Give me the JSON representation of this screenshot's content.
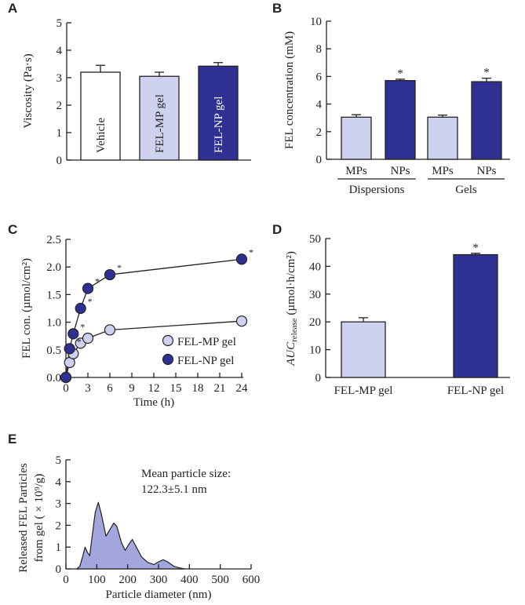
{
  "colors": {
    "light": "#cfd2ee",
    "dark": "#2e3192",
    "white": "#ffffff",
    "area": "#a3a6dd"
  },
  "chart_data": [
    {
      "panel": "A",
      "type": "bar",
      "ylabel": "Viscosity (Pa·s)",
      "ylim": [
        0,
        5
      ],
      "yticks": [
        0,
        1,
        2,
        3,
        4,
        5
      ],
      "categories": [
        "Vehicle",
        "FEL-MP gel",
        "FEL-NP gel"
      ],
      "values": [
        3.2,
        3.05,
        3.42
      ],
      "errors": [
        0.25,
        0.15,
        0.13
      ],
      "bar_colors": [
        "white",
        "light",
        "dark"
      ]
    },
    {
      "panel": "B",
      "type": "bar",
      "ylabel": "FEL concentration (mM)",
      "ylim": [
        0,
        10
      ],
      "yticks": [
        0,
        2,
        4,
        6,
        8,
        10
      ],
      "categories": [
        "MPs",
        "NPs",
        "MPs",
        "NPs"
      ],
      "groups": [
        "Dispersions",
        "Gels"
      ],
      "values": [
        3.05,
        5.7,
        3.05,
        5.62
      ],
      "errors": [
        0.18,
        0.1,
        0.15,
        0.25
      ],
      "bar_colors": [
        "light",
        "dark",
        "light",
        "dark"
      ],
      "significance": [
        "",
        "*",
        "",
        "*"
      ]
    },
    {
      "panel": "C",
      "type": "line",
      "xlabel": "Time (h)",
      "ylabel": "FEL con. (µmol/cm²)",
      "xlim": [
        0,
        24
      ],
      "ylim": [
        0,
        2.5
      ],
      "xticks": [
        0,
        3,
        6,
        9,
        12,
        15,
        18,
        21,
        24
      ],
      "yticks": [
        "0.0",
        "0.5",
        "1.0",
        "1.5",
        "2.0",
        "2.5"
      ],
      "legend": "bottom-right",
      "x": [
        0,
        0.5,
        1,
        2,
        3,
        6,
        24
      ],
      "series": [
        {
          "name": "FEL-MP gel",
          "color": "light",
          "values": [
            0,
            0.27,
            0.43,
            0.62,
            0.71,
            0.86,
            1.02
          ],
          "significance": [
            "",
            "",
            "",
            "",
            "",
            "",
            ""
          ]
        },
        {
          "name": "FEL-NP gel",
          "color": "dark",
          "values": [
            0,
            0.52,
            0.79,
            1.25,
            1.61,
            1.86,
            2.14
          ],
          "significance": [
            "",
            "*",
            "*",
            "*",
            "*",
            "*",
            "*"
          ]
        }
      ]
    },
    {
      "panel": "D",
      "type": "bar",
      "ylabel": "AUC",
      "ylabel_sub": "release",
      "ylabel_unit": " (µmol·h/cm²)",
      "ylim": [
        0,
        50
      ],
      "yticks": [
        0,
        10,
        20,
        30,
        40,
        50
      ],
      "categories": [
        "FEL-MP gel",
        "FEL-NP gel"
      ],
      "values": [
        20,
        44.2
      ],
      "errors": [
        1.5,
        0.5
      ],
      "bar_colors": [
        "light",
        "dark"
      ],
      "significance": [
        "",
        "*"
      ]
    },
    {
      "panel": "E",
      "type": "area",
      "xlabel": "Particle diameter (nm)",
      "ylabel_line1": "Released FEL Particles",
      "ylabel_line2": "from gel ( × 10⁹/g)",
      "xlim": [
        0,
        600
      ],
      "ylim": [
        0,
        5
      ],
      "xticks": [
        0,
        100,
        200,
        300,
        400,
        500,
        600
      ],
      "yticks": [
        0,
        1,
        2,
        3,
        4,
        5
      ],
      "annotation_line1": "Mean particle size:",
      "annotation_line2": "122.3±5.1 nm",
      "x": [
        35,
        45,
        55,
        62,
        70,
        77,
        85,
        95,
        105,
        115,
        130,
        140,
        155,
        165,
        180,
        192,
        205,
        215,
        228,
        245,
        265,
        285,
        300,
        315,
        330,
        350,
        370,
        385
      ],
      "values": [
        0,
        0.12,
        0.6,
        1.0,
        0.75,
        0.6,
        1.5,
        2.6,
        3.05,
        2.5,
        1.5,
        1.75,
        2.1,
        1.95,
        1.2,
        0.85,
        1.15,
        1.35,
        1.0,
        0.55,
        0.3,
        0.2,
        0.32,
        0.42,
        0.32,
        0.12,
        0.04,
        0
      ]
    }
  ]
}
